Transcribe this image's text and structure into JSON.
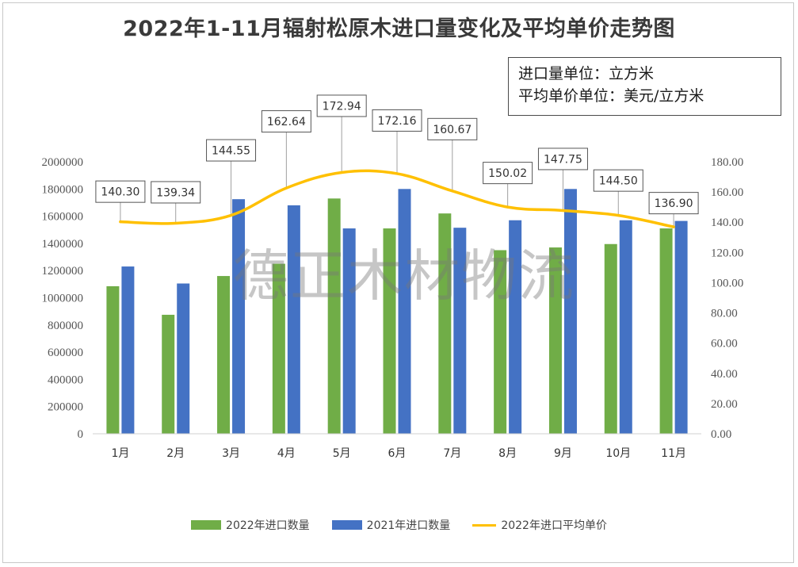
{
  "title": "2022年1-11月辐射松原木进口量变化及平均单价走势图",
  "units_note": {
    "line1": "进口量单位：立方米",
    "line2": "平均单价单位：美元/立方米"
  },
  "watermark": "德正木材物流",
  "colors": {
    "series_2022": "#70ad47",
    "series_2021": "#4472c4",
    "price_line": "#ffc000"
  },
  "chart_data": {
    "type": "bar",
    "categories": [
      "1月",
      "2月",
      "3月",
      "4月",
      "5月",
      "6月",
      "7月",
      "8月",
      "9月",
      "10月",
      "11月"
    ],
    "series": [
      {
        "name": "2022年进口数量",
        "axis": "left",
        "type": "bar",
        "values": [
          1085000,
          875000,
          1160000,
          1250000,
          1730000,
          1510000,
          1620000,
          1350000,
          1370000,
          1395000,
          1510000
        ]
      },
      {
        "name": "2021年进口数量",
        "axis": "left",
        "type": "bar",
        "values": [
          1230000,
          1105000,
          1725000,
          1680000,
          1510000,
          1800000,
          1515000,
          1570000,
          1800000,
          1570000,
          1565000
        ]
      },
      {
        "name": "2022年进口平均单价",
        "axis": "right",
        "type": "line",
        "values": [
          140.3,
          139.34,
          144.55,
          162.64,
          172.94,
          172.16,
          160.67,
          150.02,
          147.75,
          144.5,
          136.9
        ],
        "labels": [
          "140.30",
          "139.34",
          "144.55",
          "162.64",
          "172.94",
          "172.16",
          "160.67",
          "150.02",
          "147.75",
          "144.50",
          "136.90"
        ]
      }
    ],
    "y_left": {
      "min": 0,
      "max": 2000000,
      "ticks": [
        "0",
        "200000",
        "400000",
        "600000",
        "800000",
        "1000000",
        "1200000",
        "1400000",
        "1600000",
        "1800000",
        "2000000"
      ]
    },
    "y_right": {
      "min": 0,
      "max": 180,
      "ticks": [
        "0.00",
        "20.00",
        "40.00",
        "60.00",
        "80.00",
        "100.00",
        "120.00",
        "140.00",
        "160.00",
        "180.00"
      ]
    },
    "grid": false,
    "legend_position": "bottom"
  }
}
